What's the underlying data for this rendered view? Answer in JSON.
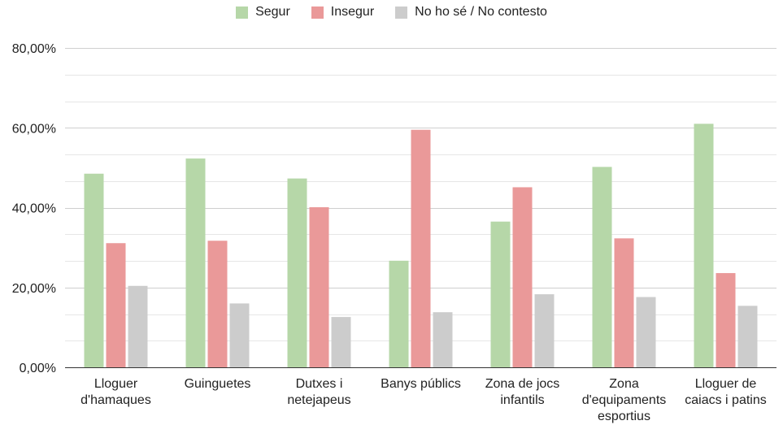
{
  "chart_data": {
    "type": "bar",
    "categories": [
      [
        "Lloguer",
        "d'hamaques"
      ],
      [
        "Guinguetes"
      ],
      [
        "Dutxes i",
        "netejapeus"
      ],
      [
        "Banys públics"
      ],
      [
        "Zona de jocs",
        "infantils"
      ],
      [
        "Zona",
        "d'equipaments",
        "esportius"
      ],
      [
        "Lloguer de",
        "caiacs i patins"
      ]
    ],
    "series": [
      {
        "name": "Segur",
        "color": "#b6d7a8",
        "values": [
          48.5,
          52.3,
          47.3,
          26.7,
          36.5,
          50.2,
          61.0
        ]
      },
      {
        "name": "Insegur",
        "color": "#ea9999",
        "values": [
          31.1,
          31.7,
          40.1,
          59.5,
          45.1,
          32.3,
          23.6
        ]
      },
      {
        "name": "No ho sé / No contesto",
        "color": "#cccccc",
        "values": [
          20.4,
          16.0,
          12.6,
          13.8,
          18.3,
          17.6,
          15.4
        ]
      }
    ],
    "yticks": [
      "0,00%",
      "20,00%",
      "40,00%",
      "60,00%",
      "80,00%"
    ],
    "ylim": [
      0,
      80
    ],
    "grid": true,
    "legend": "top-center",
    "title": "",
    "xlabel": "",
    "ylabel": ""
  }
}
